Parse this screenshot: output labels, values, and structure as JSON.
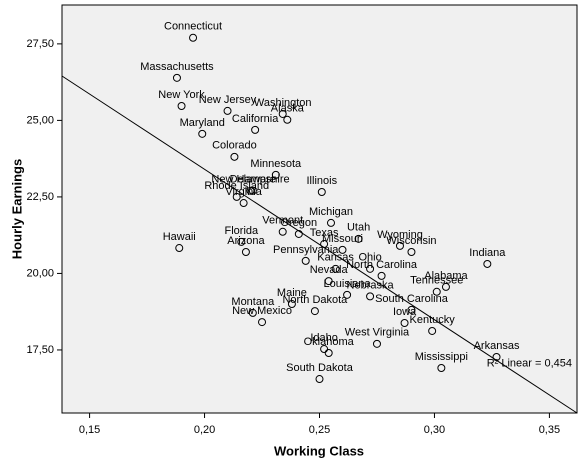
{
  "chart_data": {
    "type": "scatter",
    "x_label": "Working Class",
    "y_label": "Hourly Earnings",
    "xlim": [
      0.138,
      0.362
    ],
    "ylim": [
      15.44,
      28.77
    ],
    "xticks": [
      {
        "value": 0.15,
        "label": "0,15"
      },
      {
        "value": 0.2,
        "label": "0,20"
      },
      {
        "value": 0.25,
        "label": "0,25"
      },
      {
        "value": 0.3,
        "label": "0,30"
      },
      {
        "value": 0.35,
        "label": "0,35"
      }
    ],
    "yticks": [
      {
        "value": 17.5,
        "label": "17,50"
      },
      {
        "value": 20,
        "label": "20,00"
      },
      {
        "value": 22.5,
        "label": "22,50"
      },
      {
        "value": 25,
        "label": "25,00"
      },
      {
        "value": 27.5,
        "label": "27,50"
      }
    ],
    "labels": [
      "Connecticut",
      "Massachusetts",
      "New York",
      "New Jersey",
      "Washington",
      "Alaska",
      "Maryland",
      "California",
      "Colorado",
      "Minnesota",
      "Illinois",
      "New Hampshire",
      "Delaware",
      "Rhode Island",
      "Virginia",
      "Michigan",
      "Vermont",
      "Oregon",
      "Utah",
      "Florida",
      "Wyoming",
      "Missouri",
      "Texas",
      "Hawaii",
      "Arizona",
      "Wisconsin",
      "Indiana",
      "Pennsylvania",
      "Ohio",
      "Kansas",
      "North Carolina",
      "Nebraska",
      "Nevada",
      "Alabama",
      "Tennessee",
      "Maine",
      "Louisiana",
      "South Carolina",
      "Iowa",
      "North Dakota",
      "New Mexico",
      "Montana",
      "Kentucky",
      "West Virginia",
      "Idaho",
      "Oklahoma",
      "Arkansas",
      "Mississippi",
      "South Dakota"
    ],
    "x": [
      0.195,
      0.188,
      0.19,
      0.21,
      0.234,
      0.236,
      0.199,
      0.222,
      0.213,
      0.231,
      0.251,
      0.22,
      0.221,
      0.214,
      0.217,
      0.255,
      0.234,
      0.241,
      0.267,
      0.216,
      0.285,
      0.26,
      0.252,
      0.189,
      0.218,
      0.29,
      0.323,
      0.244,
      0.272,
      0.257,
      0.277,
      0.272,
      0.254,
      0.305,
      0.301,
      0.238,
      0.262,
      0.29,
      0.287,
      0.248,
      0.225,
      0.221,
      0.299,
      0.275,
      0.252,
      0.254,
      0.327,
      0.303,
      0.25
    ],
    "values": [
      27.7,
      26.39,
      25.47,
      25.31,
      25.21,
      25.02,
      24.56,
      24.69,
      23.81,
      23.22,
      22.66,
      22.7,
      22.7,
      22.5,
      22.3,
      21.65,
      21.36,
      21.29,
      21.13,
      21.03,
      20.9,
      20.77,
      20.96,
      20.83,
      20.7,
      20.7,
      20.31,
      20.41,
      20.15,
      20.15,
      19.92,
      19.25,
      19.75,
      19.56,
      19.4,
      19.0,
      19.3,
      18.81,
      18.38,
      18.77,
      18.41,
      18.71,
      18.12,
      17.7,
      17.53,
      17.4,
      17.27,
      16.91,
      16.55
    ],
    "color": "#000000",
    "fit_line": {
      "x": [
        0.138,
        0.362
      ],
      "y": [
        26.45,
        15.44
      ],
      "label": "R² Linear = 0,454"
    }
  }
}
